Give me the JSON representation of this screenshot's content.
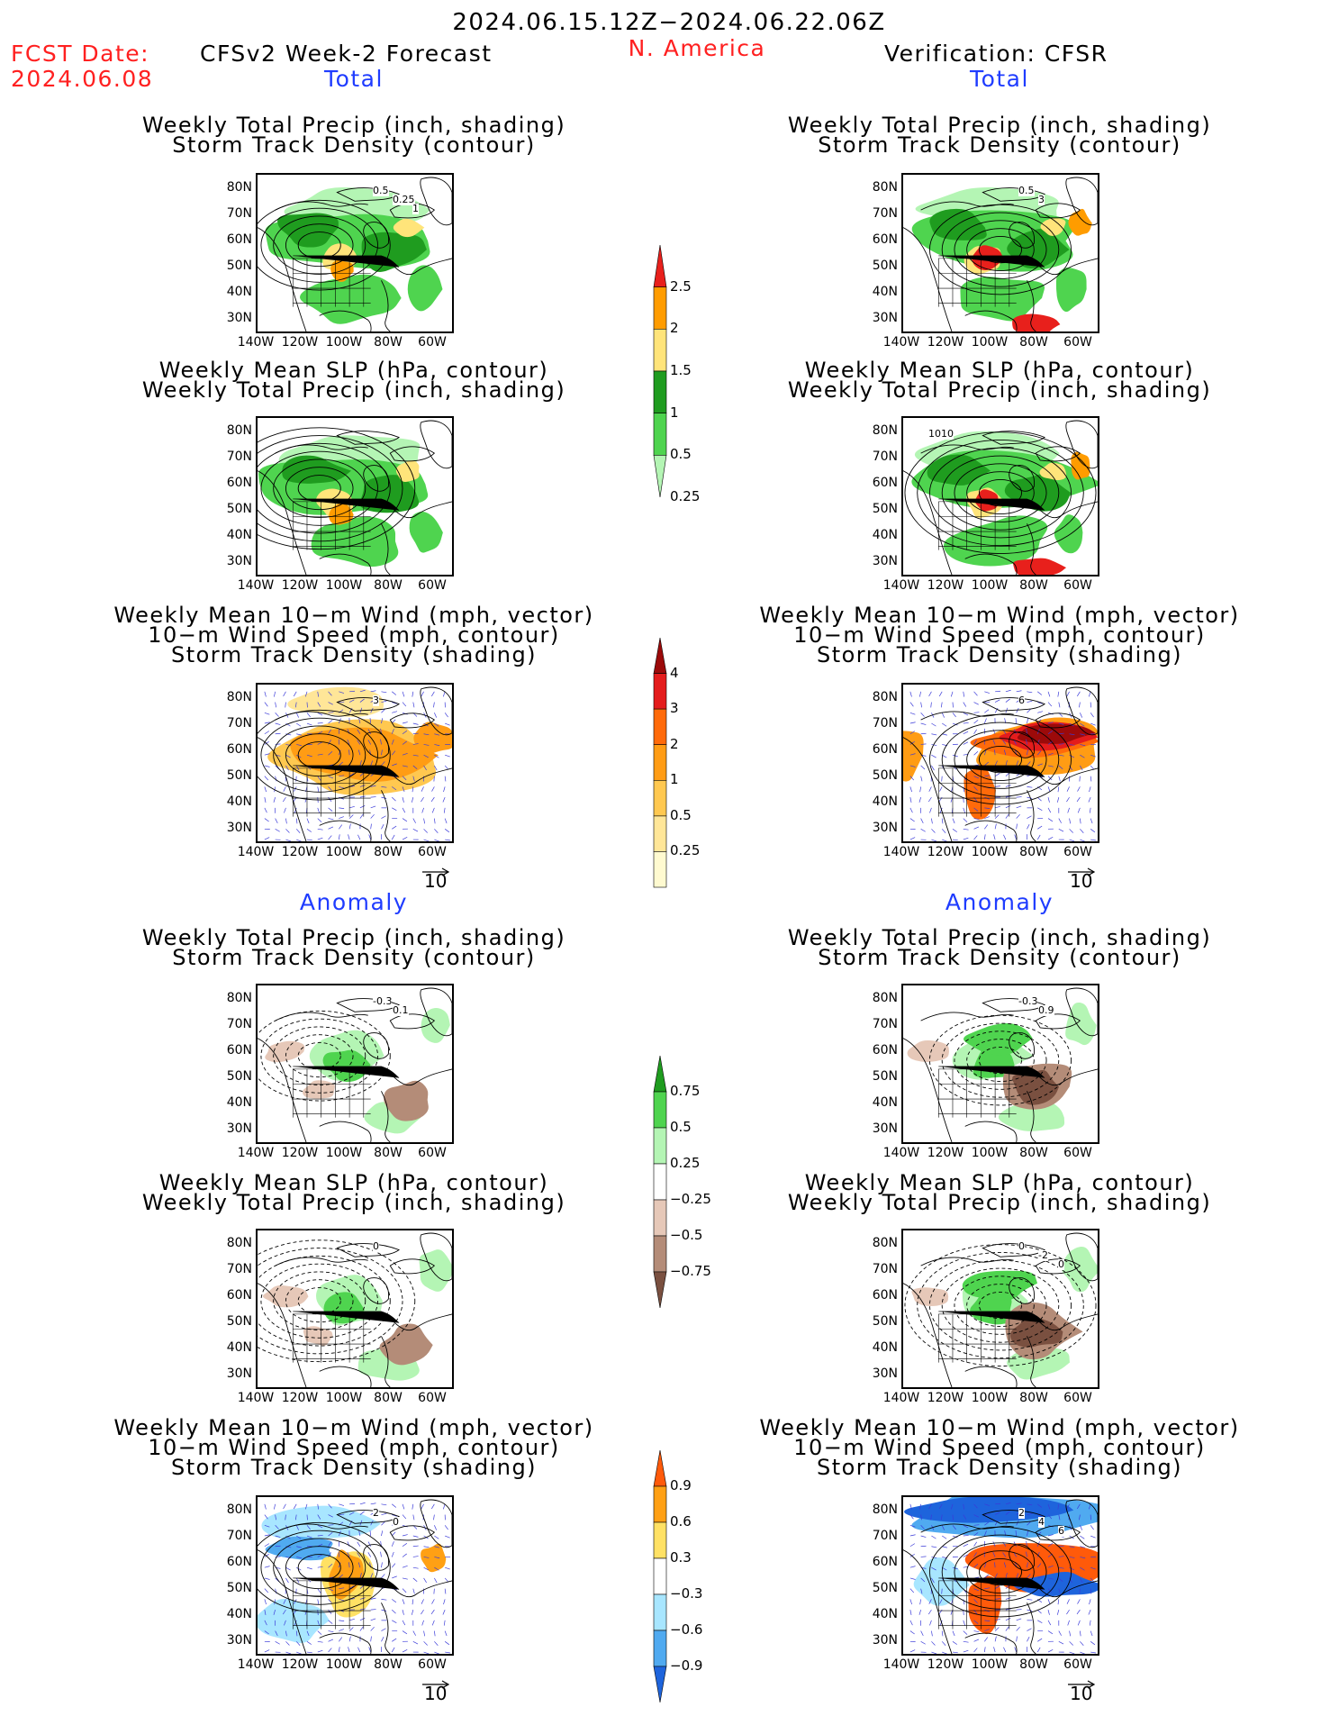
{
  "header": {
    "date_range": "2024.06.15.12Z−2024.06.22.06Z",
    "fcst_label": "FCST Date:",
    "fcst_date": "2024.06.08",
    "left_title": "CFSv2 Week-2 Forecast",
    "region": "N. America",
    "right_title": "Verification: CFSR"
  },
  "section_labels": {
    "total": "Total",
    "anomaly": "Anomaly"
  },
  "panel_titles": {
    "precip_storm": [
      "Weekly Total Precip (inch, shading)",
      "Storm Track Density (contour)"
    ],
    "slp_precip": [
      "Weekly Mean SLP (hPa, contour)",
      "Weekly Total Precip (inch, shading)"
    ],
    "wind_storm": [
      "Weekly Mean 10−m Wind (mph, vector)",
      "10−m Wind Speed (mph, contour)",
      "Storm Track Density (shading)"
    ]
  },
  "axes": {
    "lat_ticks": [
      "80N",
      "70N",
      "60N",
      "50N",
      "40N",
      "30N"
    ],
    "lon_ticks": [
      "140W",
      "120W",
      "100W",
      "80W",
      "60W"
    ]
  },
  "vector_ref": "10",
  "colorbars": {
    "precip_total": {
      "labels": [
        "2.5",
        "2",
        "1.5",
        "1",
        "0.5",
        "0.25"
      ],
      "colors": [
        "#e8201c",
        "#ff9c00",
        "#ffe47a",
        "#1f9c1f",
        "#4fd44f",
        "#b4f5b4"
      ]
    },
    "storm_total": {
      "labels": [
        "4",
        "3",
        "2",
        "1",
        "0.5",
        "0.25"
      ],
      "colors": [
        "#9c0a0a",
        "#e41c1c",
        "#ff6a0a",
        "#ff9c14",
        "#ffc850",
        "#ffe698",
        "#fffad0"
      ]
    },
    "precip_anom": {
      "labels": [
        "0.75",
        "0.5",
        "0.25",
        "−0.25",
        "−0.5",
        "−0.75"
      ],
      "colors": [
        "#1f9c1f",
        "#4fd44f",
        "#b4f5b4",
        "#ffffff",
        "#e6c8b8",
        "#b48c78",
        "#7a5040"
      ]
    },
    "storm_anom": {
      "labels": [
        "0.9",
        "0.6",
        "0.3",
        "−0.3",
        "−0.6",
        "−0.9"
      ],
      "colors": [
        "#ff5a0a",
        "#ffa014",
        "#ffe164",
        "#ffffff",
        "#a8e6ff",
        "#50aaf0",
        "#1e64dc"
      ]
    }
  },
  "contour_labels": {
    "fcst_total_precip": [
      "0.5",
      "0.25",
      "1"
    ],
    "obs_total_precip": [
      "0.5",
      "3"
    ],
    "obs_total_slp": [
      "1010"
    ],
    "fcst_total_wind": [
      "3"
    ],
    "obs_total_wind": [
      "6"
    ],
    "fcst_anom_precip": [
      "-0.3",
      "0.1"
    ],
    "obs_anom_precip": [
      "-0.3",
      "0.9"
    ],
    "fcst_anom_slp": [
      "0"
    ],
    "obs_anom_slp": [
      "0",
      "-2",
      "0"
    ],
    "fcst_anom_wind": [
      "2",
      "0"
    ],
    "obs_anom_wind": [
      "2",
      "4",
      "6"
    ]
  }
}
